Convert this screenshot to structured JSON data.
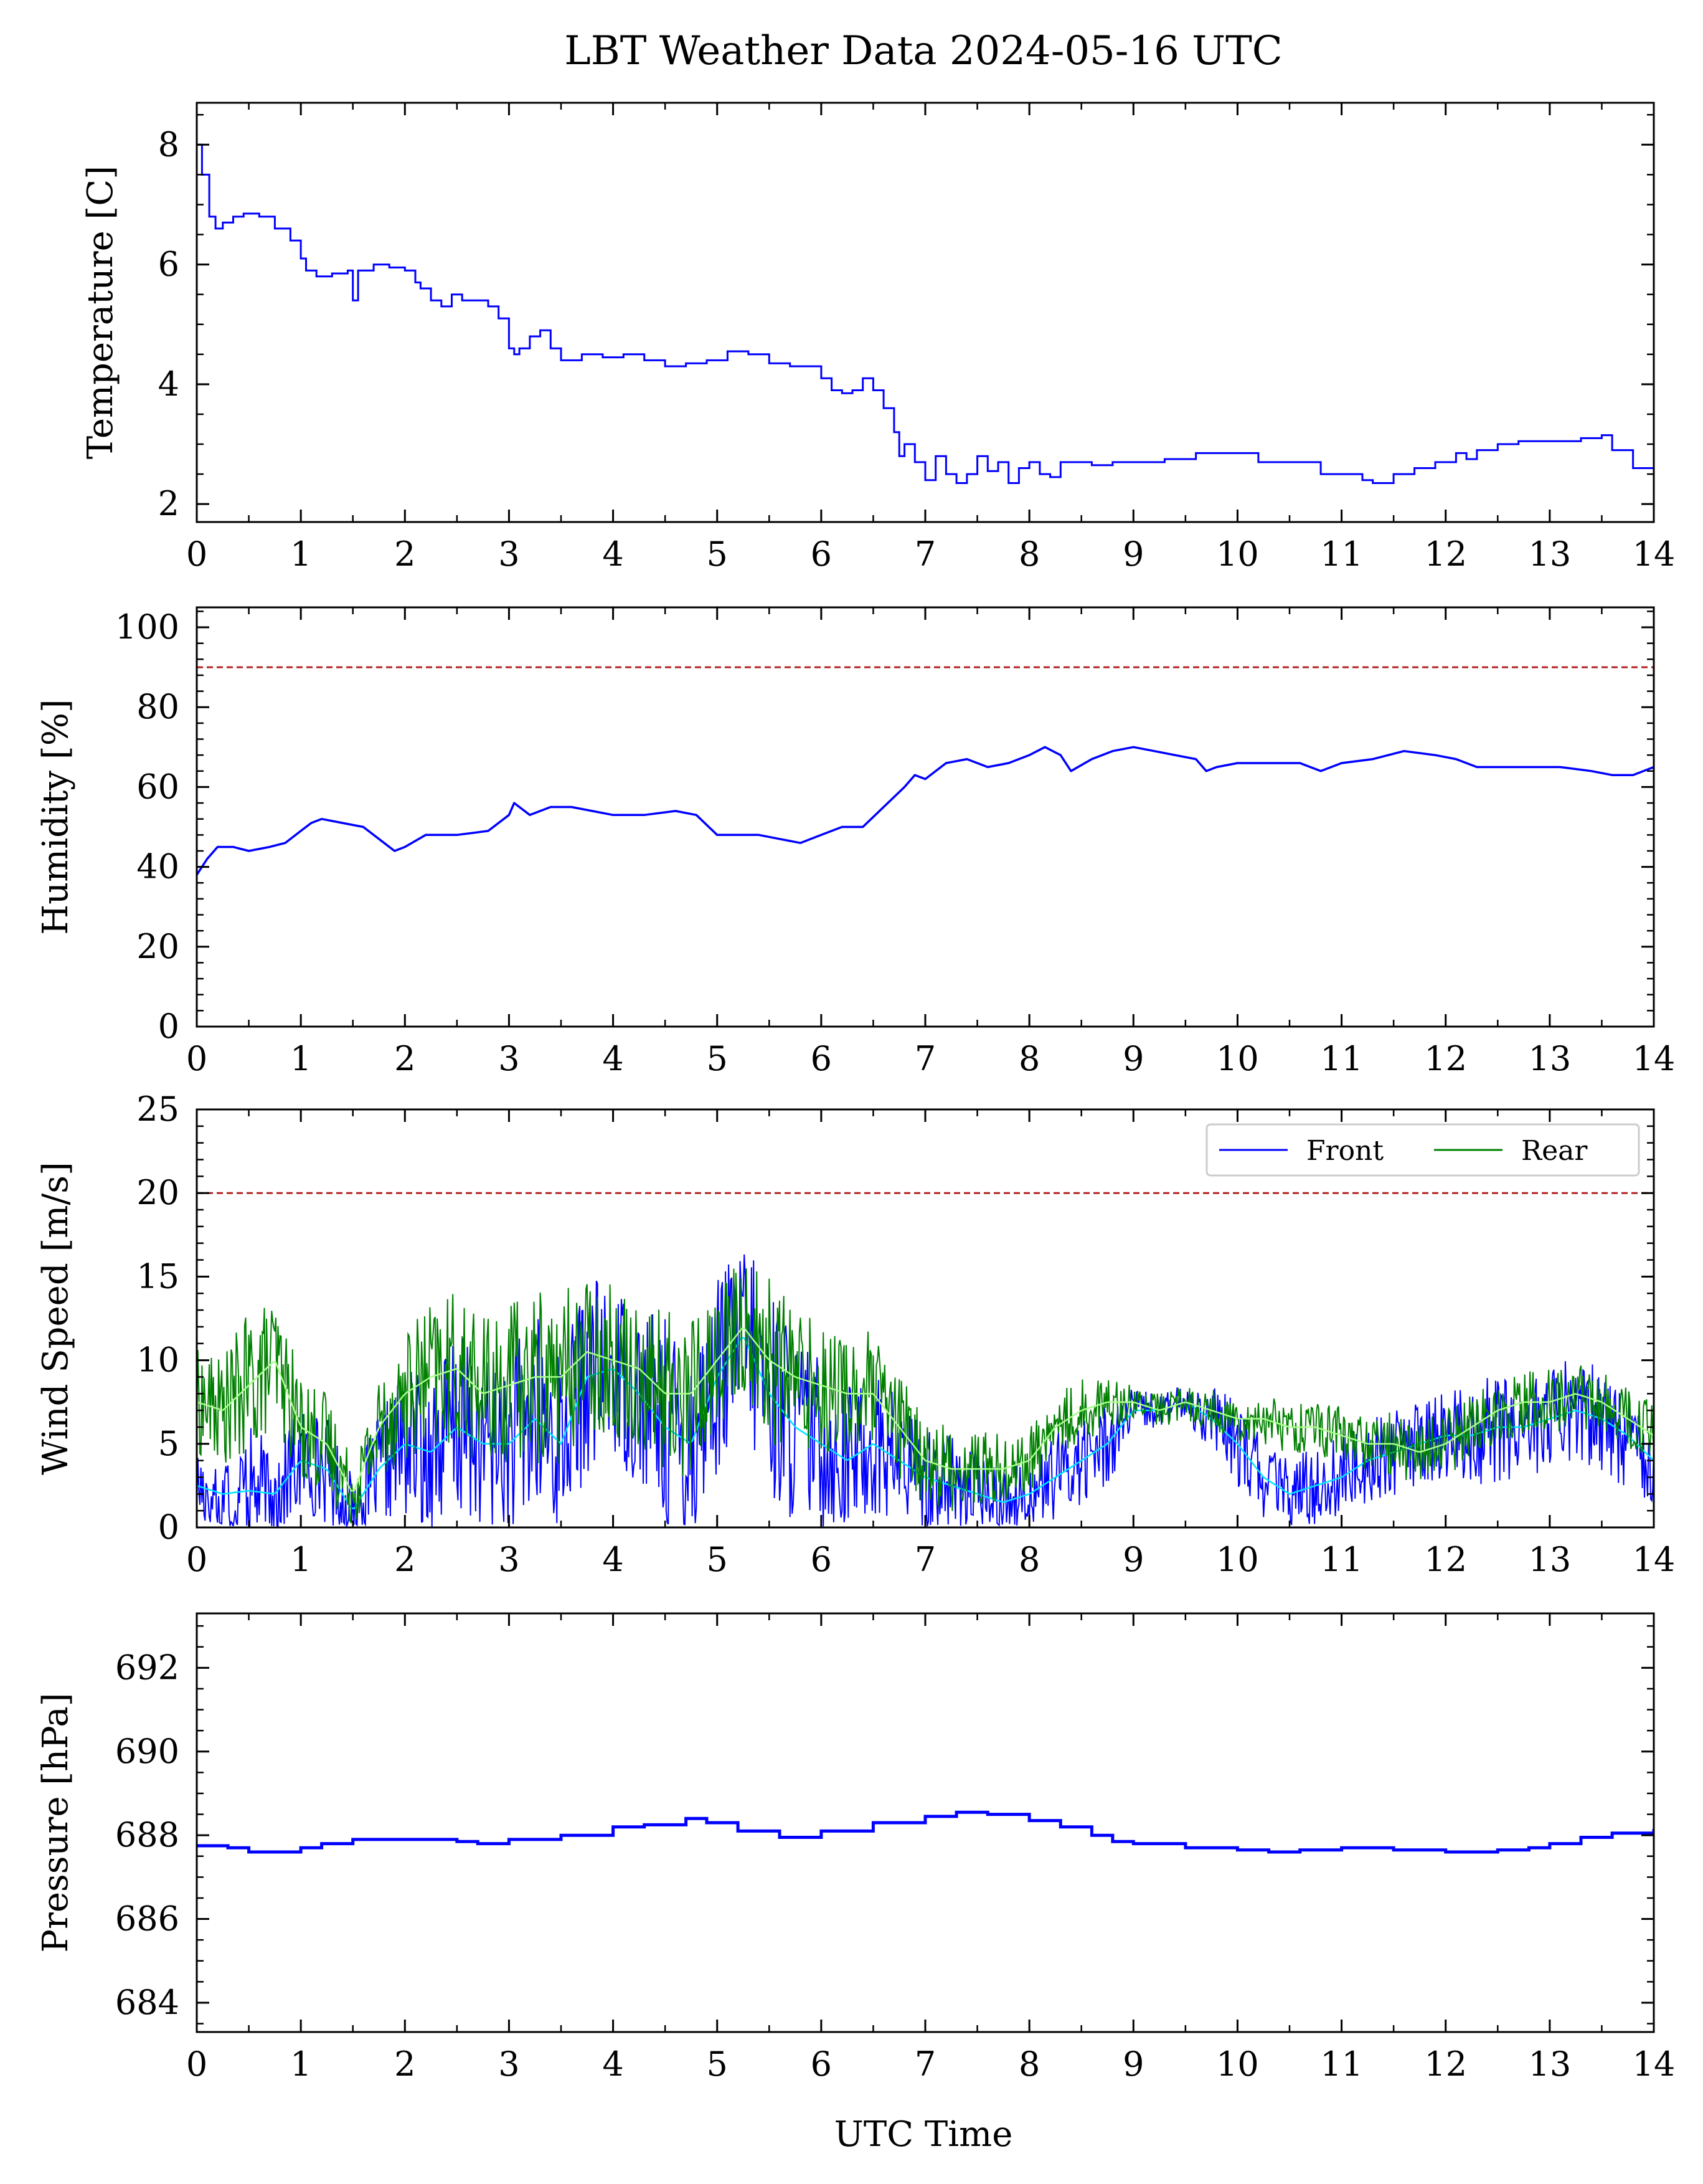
{
  "figure": {
    "title": "LBT Weather Data 2024-05-16 UTC",
    "xlabel": "UTC Time"
  },
  "colors": {
    "front": "#0000ff",
    "rear": "#008000",
    "front_smooth": "#00e5ff",
    "rear_smooth": "#a8ff8a",
    "limit": "#b22222"
  },
  "chart_data": [
    {
      "type": "line",
      "ylabel": "Temperature [C]",
      "xlim": [
        0,
        14
      ],
      "ylim": [
        1.7,
        8.7
      ],
      "yticks": [
        2,
        4,
        6,
        8
      ],
      "xticks": [
        0,
        1,
        2,
        3,
        4,
        5,
        6,
        7,
        8,
        9,
        10,
        11,
        12,
        13,
        14
      ],
      "step": true,
      "series": [
        {
          "color": "front",
          "x": [
            0,
            0.05,
            0.12,
            0.18,
            0.25,
            0.35,
            0.45,
            0.6,
            0.75,
            0.9,
            1.0,
            1.05,
            1.15,
            1.3,
            1.45,
            1.5,
            1.55,
            1.7,
            1.85,
            2.0,
            2.1,
            2.15,
            2.25,
            2.35,
            2.45,
            2.55,
            2.7,
            2.8,
            2.9,
            3.0,
            3.05,
            3.1,
            3.2,
            3.3,
            3.4,
            3.5,
            3.7,
            3.9,
            4.1,
            4.3,
            4.5,
            4.7,
            4.9,
            5.1,
            5.3,
            5.5,
            5.7,
            5.9,
            6.0,
            6.1,
            6.2,
            6.3,
            6.4,
            6.5,
            6.6,
            6.7,
            6.75,
            6.8,
            6.9,
            7.0,
            7.1,
            7.2,
            7.3,
            7.4,
            7.5,
            7.6,
            7.7,
            7.8,
            7.9,
            8.0,
            8.1,
            8.2,
            8.3,
            8.4,
            8.6,
            8.8,
            9.0,
            9.3,
            9.6,
            9.9,
            10.2,
            10.5,
            10.8,
            11.0,
            11.2,
            11.3,
            11.5,
            11.7,
            11.9,
            12.1,
            12.2,
            12.3,
            12.5,
            12.7,
            13.0,
            13.3,
            13.5,
            13.6,
            13.8,
            14.0
          ],
          "y": [
            8.0,
            7.5,
            6.8,
            6.6,
            6.7,
            6.8,
            6.85,
            6.8,
            6.6,
            6.4,
            6.1,
            5.9,
            5.8,
            5.85,
            5.9,
            5.4,
            5.9,
            6.0,
            5.95,
            5.9,
            5.7,
            5.6,
            5.4,
            5.3,
            5.5,
            5.4,
            5.4,
            5.3,
            5.1,
            4.6,
            4.5,
            4.6,
            4.8,
            4.9,
            4.6,
            4.4,
            4.5,
            4.45,
            4.5,
            4.4,
            4.3,
            4.35,
            4.4,
            4.55,
            4.5,
            4.35,
            4.3,
            4.3,
            4.1,
            3.9,
            3.85,
            3.9,
            4.1,
            3.9,
            3.6,
            3.2,
            2.8,
            3.0,
            2.7,
            2.4,
            2.8,
            2.5,
            2.35,
            2.5,
            2.8,
            2.55,
            2.7,
            2.35,
            2.6,
            2.7,
            2.5,
            2.45,
            2.7,
            2.7,
            2.65,
            2.7,
            2.7,
            2.75,
            2.85,
            2.85,
            2.7,
            2.7,
            2.5,
            2.5,
            2.4,
            2.35,
            2.5,
            2.6,
            2.7,
            2.85,
            2.75,
            2.9,
            3.0,
            3.05,
            3.05,
            3.1,
            3.15,
            2.9,
            2.6,
            2.6
          ]
        }
      ]
    },
    {
      "type": "line",
      "ylabel": "Humidity [%]",
      "xlim": [
        0,
        14
      ],
      "ylim": [
        0,
        105
      ],
      "yticks": [
        0,
        20,
        40,
        60,
        80,
        100
      ],
      "xticks": [
        0,
        1,
        2,
        3,
        4,
        5,
        6,
        7,
        8,
        9,
        10,
        11,
        12,
        13,
        14
      ],
      "threshold": 90,
      "series": [
        {
          "color": "front",
          "x": [
            0,
            0.1,
            0.2,
            0.35,
            0.5,
            0.7,
            0.85,
            1.0,
            1.1,
            1.2,
            1.4,
            1.6,
            1.8,
            1.9,
            2.0,
            2.2,
            2.5,
            2.8,
            3.0,
            3.05,
            3.2,
            3.4,
            3.6,
            3.8,
            4.0,
            4.3,
            4.6,
            4.8,
            5.0,
            5.2,
            5.4,
            5.6,
            5.8,
            6.0,
            6.2,
            6.4,
            6.6,
            6.8,
            6.9,
            7.0,
            7.2,
            7.4,
            7.6,
            7.8,
            8.0,
            8.15,
            8.3,
            8.4,
            8.6,
            8.8,
            9.0,
            9.2,
            9.4,
            9.6,
            9.7,
            9.8,
            10.0,
            10.3,
            10.6,
            10.8,
            11.0,
            11.3,
            11.6,
            11.9,
            12.1,
            12.3,
            12.6,
            12.9,
            13.1,
            13.4,
            13.6,
            13.8,
            14.0
          ],
          "y": [
            38,
            42,
            45,
            45,
            44,
            45,
            46,
            49,
            51,
            52,
            51,
            50,
            46,
            44,
            45,
            48,
            48,
            49,
            53,
            56,
            53,
            55,
            55,
            54,
            53,
            53,
            54,
            53,
            48,
            48,
            48,
            47,
            46,
            48,
            50,
            50,
            55,
            60,
            63,
            62,
            66,
            67,
            65,
            66,
            68,
            70,
            68,
            64,
            67,
            69,
            70,
            69,
            68,
            67,
            64,
            65,
            66,
            66,
            66,
            64,
            66,
            67,
            69,
            68,
            67,
            65,
            65,
            65,
            65,
            64,
            63,
            63,
            65
          ]
        }
      ]
    },
    {
      "type": "line",
      "ylabel": "Wind Speed [m/s]",
      "xlim": [
        0,
        14
      ],
      "ylim": [
        0,
        25
      ],
      "yticks": [
        0,
        5,
        10,
        15,
        20,
        25
      ],
      "xticks": [
        0,
        1,
        2,
        3,
        4,
        5,
        6,
        7,
        8,
        9,
        10,
        11,
        12,
        13,
        14
      ],
      "threshold": 20,
      "legend": {
        "position": "top-right",
        "columns": 2
      },
      "series": [
        {
          "name": "Front",
          "color": "front",
          "smooth_color": "front_smooth",
          "x": [
            0,
            0.25,
            0.5,
            0.75,
            1.0,
            1.25,
            1.5,
            1.75,
            2.0,
            2.25,
            2.5,
            2.75,
            3.0,
            3.25,
            3.5,
            3.75,
            4.0,
            4.25,
            4.5,
            4.75,
            5.0,
            5.25,
            5.5,
            5.75,
            6.0,
            6.25,
            6.5,
            6.75,
            7.0,
            7.25,
            7.5,
            7.75,
            8.0,
            8.25,
            8.5,
            8.75,
            9.0,
            9.25,
            9.5,
            9.75,
            10.0,
            10.25,
            10.5,
            10.75,
            11.0,
            11.25,
            11.5,
            11.75,
            12.0,
            12.25,
            12.5,
            12.75,
            13.0,
            13.25,
            13.5,
            13.75,
            14.0
          ],
          "y": [
            2.5,
            2.0,
            2.2,
            2.0,
            4.0,
            3.5,
            1.0,
            3.5,
            5.0,
            4.5,
            6.0,
            5.0,
            5.0,
            6.5,
            5.0,
            9.0,
            9.5,
            8.0,
            6.0,
            5.0,
            9.0,
            11.5,
            8.0,
            6.0,
            5.0,
            4.0,
            5.0,
            4.0,
            3.0,
            2.5,
            2.0,
            1.5,
            2.0,
            3.0,
            4.0,
            5.0,
            7.0,
            7.0,
            7.5,
            6.5,
            5.0,
            3.0,
            2.0,
            2.5,
            3.0,
            4.0,
            4.5,
            5.0,
            5.5,
            5.5,
            6.0,
            6.0,
            6.5,
            7.0,
            6.5,
            5.5,
            4.0
          ],
          "amplitude": [
            2.0,
            2.5,
            3.0,
            2.5,
            2.5,
            2.5,
            1.5,
            2.5,
            3.5,
            4.0,
            4.5,
            4.0,
            4.5,
            5.0,
            4.5,
            4.5,
            4.0,
            4.5,
            5.0,
            5.0,
            4.5,
            4.5,
            5.0,
            4.5,
            4.0,
            3.5,
            3.5,
            3.0,
            2.5,
            2.5,
            2.0,
            1.5,
            1.5,
            2.0,
            2.0,
            2.0,
            1.0,
            0.8,
            0.8,
            1.5,
            2.0,
            2.0,
            1.5,
            2.0,
            2.0,
            2.0,
            2.0,
            2.0,
            2.0,
            2.5,
            2.5,
            2.5,
            2.5,
            2.5,
            2.5,
            2.5,
            2.0
          ]
        },
        {
          "name": "Rear",
          "color": "rear",
          "smooth_color": "rear_smooth",
          "x": [
            0,
            0.25,
            0.5,
            0.75,
            1.0,
            1.25,
            1.5,
            1.75,
            2.0,
            2.25,
            2.5,
            2.75,
            3.0,
            3.25,
            3.5,
            3.75,
            4.0,
            4.25,
            4.5,
            4.75,
            5.0,
            5.25,
            5.5,
            5.75,
            6.0,
            6.25,
            6.5,
            6.75,
            7.0,
            7.25,
            7.5,
            7.75,
            8.0,
            8.25,
            8.5,
            8.75,
            9.0,
            9.25,
            9.5,
            9.75,
            10.0,
            10.25,
            10.5,
            10.75,
            11.0,
            11.25,
            11.5,
            11.75,
            12.0,
            12.25,
            12.5,
            12.75,
            13.0,
            13.25,
            13.5,
            13.75,
            14.0
          ],
          "y": [
            7.5,
            7.0,
            8.5,
            10.0,
            6.0,
            5.0,
            2.0,
            6.0,
            8.0,
            9.0,
            9.5,
            8.0,
            8.5,
            9.0,
            9.0,
            10.5,
            10.0,
            9.5,
            8.0,
            8.0,
            10.0,
            12.0,
            10.0,
            9.0,
            8.5,
            8.0,
            8.0,
            6.0,
            4.0,
            3.5,
            3.5,
            3.5,
            4.0,
            6.0,
            7.0,
            7.5,
            7.5,
            7.0,
            7.5,
            7.0,
            6.5,
            6.5,
            6.0,
            6.0,
            5.5,
            5.0,
            5.0,
            4.5,
            5.0,
            6.0,
            7.0,
            7.5,
            7.5,
            8.0,
            7.5,
            6.5,
            5.5
          ],
          "amplitude": [
            2.5,
            2.5,
            3.5,
            3.0,
            2.5,
            2.5,
            1.5,
            2.5,
            3.0,
            3.5,
            3.5,
            3.5,
            4.0,
            4.0,
            4.0,
            3.5,
            3.5,
            3.5,
            4.0,
            4.0,
            3.5,
            3.5,
            4.0,
            3.5,
            3.0,
            3.0,
            3.0,
            2.5,
            2.0,
            2.0,
            2.0,
            1.5,
            1.5,
            1.5,
            1.5,
            1.2,
            0.8,
            0.8,
            0.8,
            1.0,
            1.0,
            1.2,
            1.2,
            1.2,
            1.5,
            1.5,
            1.5,
            1.5,
            1.5,
            1.5,
            1.5,
            1.5,
            1.5,
            1.5,
            1.5,
            1.5,
            1.5
          ]
        }
      ]
    },
    {
      "type": "line",
      "ylabel": "Pressure [hPa]",
      "xlim": [
        0,
        14
      ],
      "ylim": [
        683.3,
        693.3
      ],
      "yticks": [
        684,
        686,
        688,
        690,
        692
      ],
      "xticks": [
        0,
        1,
        2,
        3,
        4,
        5,
        6,
        7,
        8,
        9,
        10,
        11,
        12,
        13,
        14
      ],
      "step": true,
      "series": [
        {
          "color": "front",
          "x": [
            0,
            0.3,
            0.5,
            0.8,
            1.0,
            1.2,
            1.5,
            2.0,
            2.5,
            2.7,
            3.0,
            3.5,
            4.0,
            4.3,
            4.7,
            4.9,
            5.2,
            5.6,
            6.0,
            6.5,
            7.0,
            7.3,
            7.6,
            8.0,
            8.3,
            8.6,
            8.8,
            9.0,
            9.5,
            10.0,
            10.3,
            10.6,
            11.0,
            11.5,
            12.0,
            12.5,
            12.8,
            13.0,
            13.3,
            13.6,
            14.0
          ],
          "y": [
            687.75,
            687.7,
            687.6,
            687.6,
            687.7,
            687.8,
            687.9,
            687.9,
            687.85,
            687.8,
            687.9,
            688.0,
            688.2,
            688.25,
            688.4,
            688.3,
            688.1,
            687.95,
            688.1,
            688.3,
            688.45,
            688.55,
            688.5,
            688.35,
            688.2,
            688.0,
            687.85,
            687.8,
            687.7,
            687.65,
            687.6,
            687.65,
            687.7,
            687.65,
            687.6,
            687.65,
            687.7,
            687.8,
            687.95,
            688.05,
            688.15
          ]
        }
      ]
    }
  ]
}
